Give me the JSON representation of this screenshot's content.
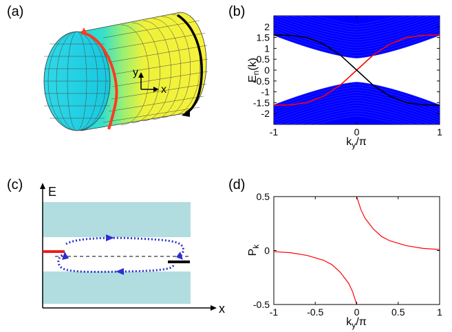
{
  "labels": {
    "a": "(a)",
    "b": "(b)",
    "c": "(c)",
    "d": "(d)"
  },
  "panel_a": {
    "axis_y": "y",
    "axis_x": "x",
    "colors": {
      "left": "#22d8d8",
      "right": "#f0f040",
      "edge_red": "#ff3b1f",
      "edge_black": "#000000"
    }
  },
  "panel_c": {
    "axis_e": "E",
    "axis_x": "x",
    "colors": {
      "band": "#b1dde0",
      "loop": "#2d2dd2",
      "red_state": "#ee1a1a",
      "black_state": "#000000"
    }
  },
  "chart_data": [
    {
      "type": "line",
      "panel": "b",
      "xlabel": "k_y/π",
      "ylabel": "E_n(k)",
      "xlim": [
        -1,
        1
      ],
      "ylim": [
        -2.5,
        2.5
      ],
      "x_ticks": [
        "-1",
        "0",
        "1"
      ],
      "y_ticks": [
        "2",
        "1.5",
        "1",
        "0.5",
        "0",
        "-0.5",
        "-1",
        "-1.5",
        "-2"
      ],
      "bulk_band_color": "#0000ff",
      "series": [
        {
          "color": "#ff0000",
          "x": [
            -1,
            -0.8,
            -0.6,
            -0.4,
            -0.2,
            0,
            0.2,
            0.4,
            0.6,
            0.8,
            1
          ],
          "y": [
            -1.62,
            -1.6,
            -1.5,
            -1.2,
            -0.7,
            0,
            0.7,
            1.2,
            1.5,
            1.6,
            1.62
          ]
        },
        {
          "color": "#000000",
          "x": [
            -1,
            -0.8,
            -0.6,
            -0.4,
            -0.2,
            0,
            0.2,
            0.4,
            0.6,
            0.8,
            1
          ],
          "y": [
            1.62,
            1.6,
            1.5,
            1.2,
            0.7,
            0,
            -0.7,
            -1.2,
            -1.5,
            -1.6,
            -1.62
          ]
        }
      ]
    },
    {
      "type": "line",
      "panel": "d",
      "xlabel": "k_y/π",
      "ylabel": "P_k",
      "xlim": [
        -1,
        1
      ],
      "ylim": [
        -0.5,
        0.5
      ],
      "x_ticks": [
        "-1",
        "-0.5",
        "0",
        "0.5",
        "1"
      ],
      "y_ticks": [
        "0.5",
        "0",
        "-0.5"
      ],
      "series": [
        {
          "color": "#ff0000",
          "x": [
            -1,
            -0.8,
            -0.6,
            -0.4,
            -0.3,
            -0.2,
            -0.1,
            -0.05,
            0
          ],
          "y": [
            -0.01,
            -0.02,
            -0.045,
            -0.09,
            -0.13,
            -0.2,
            -0.3,
            -0.38,
            -0.5
          ]
        },
        {
          "color": "#ff0000",
          "x": [
            0,
            0.05,
            0.1,
            0.2,
            0.3,
            0.4,
            0.6,
            0.8,
            1
          ],
          "y": [
            0.5,
            0.38,
            0.3,
            0.2,
            0.13,
            0.09,
            0.045,
            0.02,
            0.01
          ]
        }
      ]
    }
  ]
}
